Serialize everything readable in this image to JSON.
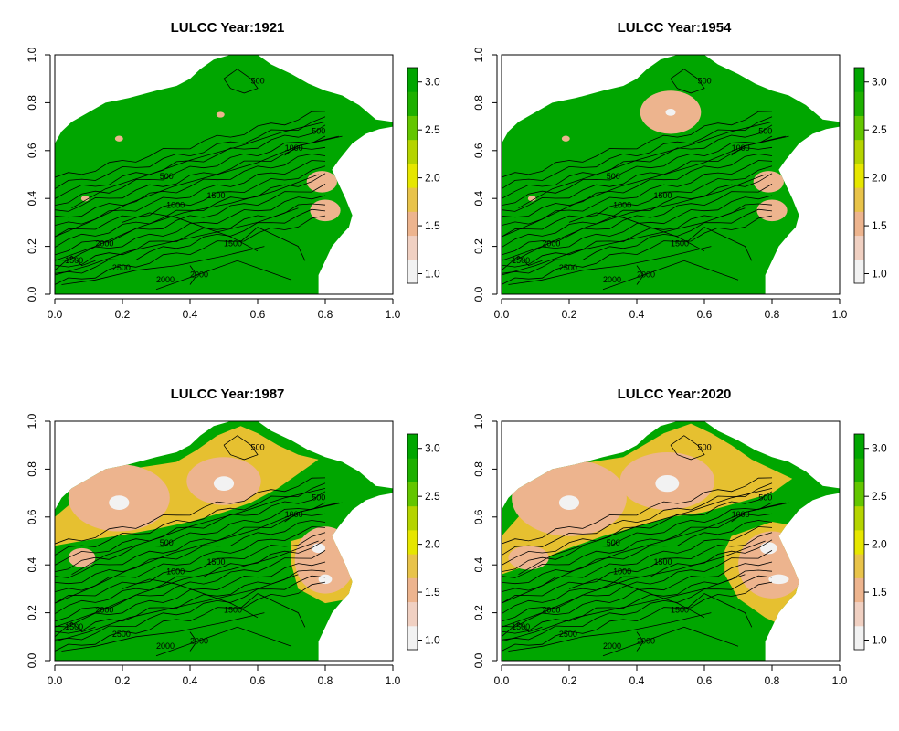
{
  "chart_data": [
    {
      "type": "heatmap",
      "title": "LULCC Year:1921",
      "year": 1921,
      "xlim": [
        0.0,
        1.0
      ],
      "ylim": [
        0.0,
        1.0
      ],
      "x_ticks": [
        "0.0",
        "0.2",
        "0.4",
        "0.6",
        "0.8",
        "1.0"
      ],
      "y_ticks": [
        "0.0",
        "0.2",
        "0.4",
        "0.6",
        "0.8",
        "1.0"
      ],
      "legend": {
        "min": 1.0,
        "max": 3.0,
        "ticks": [
          "1.0",
          "1.5",
          "2.0",
          "2.5",
          "3.0"
        ],
        "placement": "right"
      },
      "contour_levels": [
        "500",
        "1000",
        "1500",
        "2000",
        "2500"
      ],
      "classes": {
        "forest": 3.0,
        "agriculture": 2.0,
        "urban_fringe": 1.4,
        "urban_core": 1.0
      },
      "regions": [
        {
          "value": 1.4,
          "cx": 0.79,
          "cy": 0.47,
          "rx": 0.045,
          "ry": 0.045
        },
        {
          "value": 1.4,
          "cx": 0.8,
          "cy": 0.35,
          "rx": 0.045,
          "ry": 0.045
        },
        {
          "value": 1.5,
          "cx": 0.19,
          "cy": 0.65,
          "rx": 0.012,
          "ry": 0.012
        },
        {
          "value": 1.5,
          "cx": 0.49,
          "cy": 0.75,
          "rx": 0.012,
          "ry": 0.012
        },
        {
          "value": 1.5,
          "cx": 0.09,
          "cy": 0.4,
          "rx": 0.012,
          "ry": 0.012
        }
      ]
    },
    {
      "type": "heatmap",
      "title": "LULCC Year:1954",
      "year": 1954,
      "xlim": [
        0.0,
        1.0
      ],
      "ylim": [
        0.0,
        1.0
      ],
      "x_ticks": [
        "0.0",
        "0.2",
        "0.4",
        "0.6",
        "0.8",
        "1.0"
      ],
      "y_ticks": [
        "0.0",
        "0.2",
        "0.4",
        "0.6",
        "0.8",
        "1.0"
      ],
      "legend": {
        "min": 1.0,
        "max": 3.0,
        "ticks": [
          "1.0",
          "1.5",
          "2.0",
          "2.5",
          "3.0"
        ],
        "placement": "right"
      },
      "contour_levels": [
        "500",
        "1000",
        "1500",
        "2000",
        "2500"
      ],
      "classes": {
        "forest": 3.0,
        "agriculture": 2.0,
        "urban_fringe": 1.4,
        "urban_core": 1.0
      },
      "regions": [
        {
          "value": 1.4,
          "cx": 0.5,
          "cy": 0.76,
          "rx": 0.09,
          "ry": 0.09
        },
        {
          "value": 1.0,
          "cx": 0.5,
          "cy": 0.76,
          "rx": 0.015,
          "ry": 0.015
        },
        {
          "value": 1.4,
          "cx": 0.79,
          "cy": 0.47,
          "rx": 0.045,
          "ry": 0.045
        },
        {
          "value": 1.4,
          "cx": 0.8,
          "cy": 0.35,
          "rx": 0.045,
          "ry": 0.045
        },
        {
          "value": 1.5,
          "cx": 0.19,
          "cy": 0.65,
          "rx": 0.012,
          "ry": 0.012
        },
        {
          "value": 1.5,
          "cx": 0.09,
          "cy": 0.4,
          "rx": 0.012,
          "ry": 0.012
        }
      ]
    },
    {
      "type": "heatmap",
      "title": "LULCC Year:1987",
      "year": 1987,
      "xlim": [
        0.0,
        1.0
      ],
      "ylim": [
        0.0,
        1.0
      ],
      "x_ticks": [
        "0.0",
        "0.2",
        "0.4",
        "0.6",
        "0.8",
        "1.0"
      ],
      "y_ticks": [
        "0.0",
        "0.2",
        "0.4",
        "0.6",
        "0.8",
        "1.0"
      ],
      "legend": {
        "min": 1.0,
        "max": 3.0,
        "ticks": [
          "1.0",
          "1.5",
          "2.0",
          "2.5",
          "3.0"
        ],
        "placement": "right"
      },
      "contour_levels": [
        "500",
        "1000",
        "1500",
        "2000",
        "2500"
      ],
      "classes": {
        "forest": 3.0,
        "agriculture": 2.0,
        "urban_fringe": 1.4,
        "urban_core": 1.0
      },
      "regions": [
        {
          "value": 1.4,
          "cx": 0.19,
          "cy": 0.68,
          "rx": 0.15,
          "ry": 0.14
        },
        {
          "value": 1.0,
          "cx": 0.19,
          "cy": 0.66,
          "rx": 0.03,
          "ry": 0.03
        },
        {
          "value": 1.4,
          "cx": 0.5,
          "cy": 0.75,
          "rx": 0.11,
          "ry": 0.1
        },
        {
          "value": 1.0,
          "cx": 0.5,
          "cy": 0.74,
          "rx": 0.03,
          "ry": 0.03
        },
        {
          "value": 1.4,
          "cx": 0.8,
          "cy": 0.42,
          "rx": 0.09,
          "ry": 0.14
        },
        {
          "value": 1.0,
          "cx": 0.78,
          "cy": 0.47,
          "rx": 0.02,
          "ry": 0.02
        },
        {
          "value": 1.0,
          "cx": 0.8,
          "cy": 0.34,
          "rx": 0.02,
          "ry": 0.02
        },
        {
          "value": 1.4,
          "cx": 0.08,
          "cy": 0.43,
          "rx": 0.04,
          "ry": 0.04
        }
      ]
    },
    {
      "type": "heatmap",
      "title": "LULCC Year:2020",
      "year": 2020,
      "xlim": [
        0.0,
        1.0
      ],
      "ylim": [
        0.0,
        1.0
      ],
      "x_ticks": [
        "0.0",
        "0.2",
        "0.4",
        "0.6",
        "0.8",
        "1.0"
      ],
      "y_ticks": [
        "0.0",
        "0.2",
        "0.4",
        "0.6",
        "0.8",
        "1.0"
      ],
      "legend": {
        "min": 1.0,
        "max": 3.0,
        "ticks": [
          "1.0",
          "1.5",
          "2.0",
          "2.5",
          "3.0"
        ],
        "placement": "right"
      },
      "contour_levels": [
        "500",
        "1000",
        "1500",
        "2000",
        "2500"
      ],
      "classes": {
        "forest": 3.0,
        "agriculture": 2.0,
        "urban_fringe": 1.4,
        "urban_core": 1.0
      },
      "regions": [
        {
          "value": 1.4,
          "cx": 0.2,
          "cy": 0.68,
          "rx": 0.17,
          "ry": 0.16
        },
        {
          "value": 1.0,
          "cx": 0.2,
          "cy": 0.66,
          "rx": 0.03,
          "ry": 0.03
        },
        {
          "value": 1.4,
          "cx": 0.49,
          "cy": 0.75,
          "rx": 0.14,
          "ry": 0.12
        },
        {
          "value": 1.0,
          "cx": 0.49,
          "cy": 0.74,
          "rx": 0.035,
          "ry": 0.035
        },
        {
          "value": 1.4,
          "cx": 0.8,
          "cy": 0.4,
          "rx": 0.1,
          "ry": 0.14
        },
        {
          "value": 1.0,
          "cx": 0.79,
          "cy": 0.47,
          "rx": 0.025,
          "ry": 0.025
        },
        {
          "value": 1.0,
          "cx": 0.82,
          "cy": 0.34,
          "rx": 0.03,
          "ry": 0.02
        },
        {
          "value": 1.4,
          "cx": 0.08,
          "cy": 0.43,
          "rx": 0.06,
          "ry": 0.05
        }
      ]
    }
  ],
  "colors": {
    "forest": "#00A600",
    "agriculture": "#E6C030",
    "urban_fringe": "#EDB48E",
    "urban_core": "#F2F2F2",
    "legend_ramp": [
      "#F2F2F2",
      "#F0D0C2",
      "#EDB48E",
      "#E8C34A",
      "#E6E600",
      "#B5D400",
      "#63C600",
      "#1DB000",
      "#00A600"
    ]
  }
}
